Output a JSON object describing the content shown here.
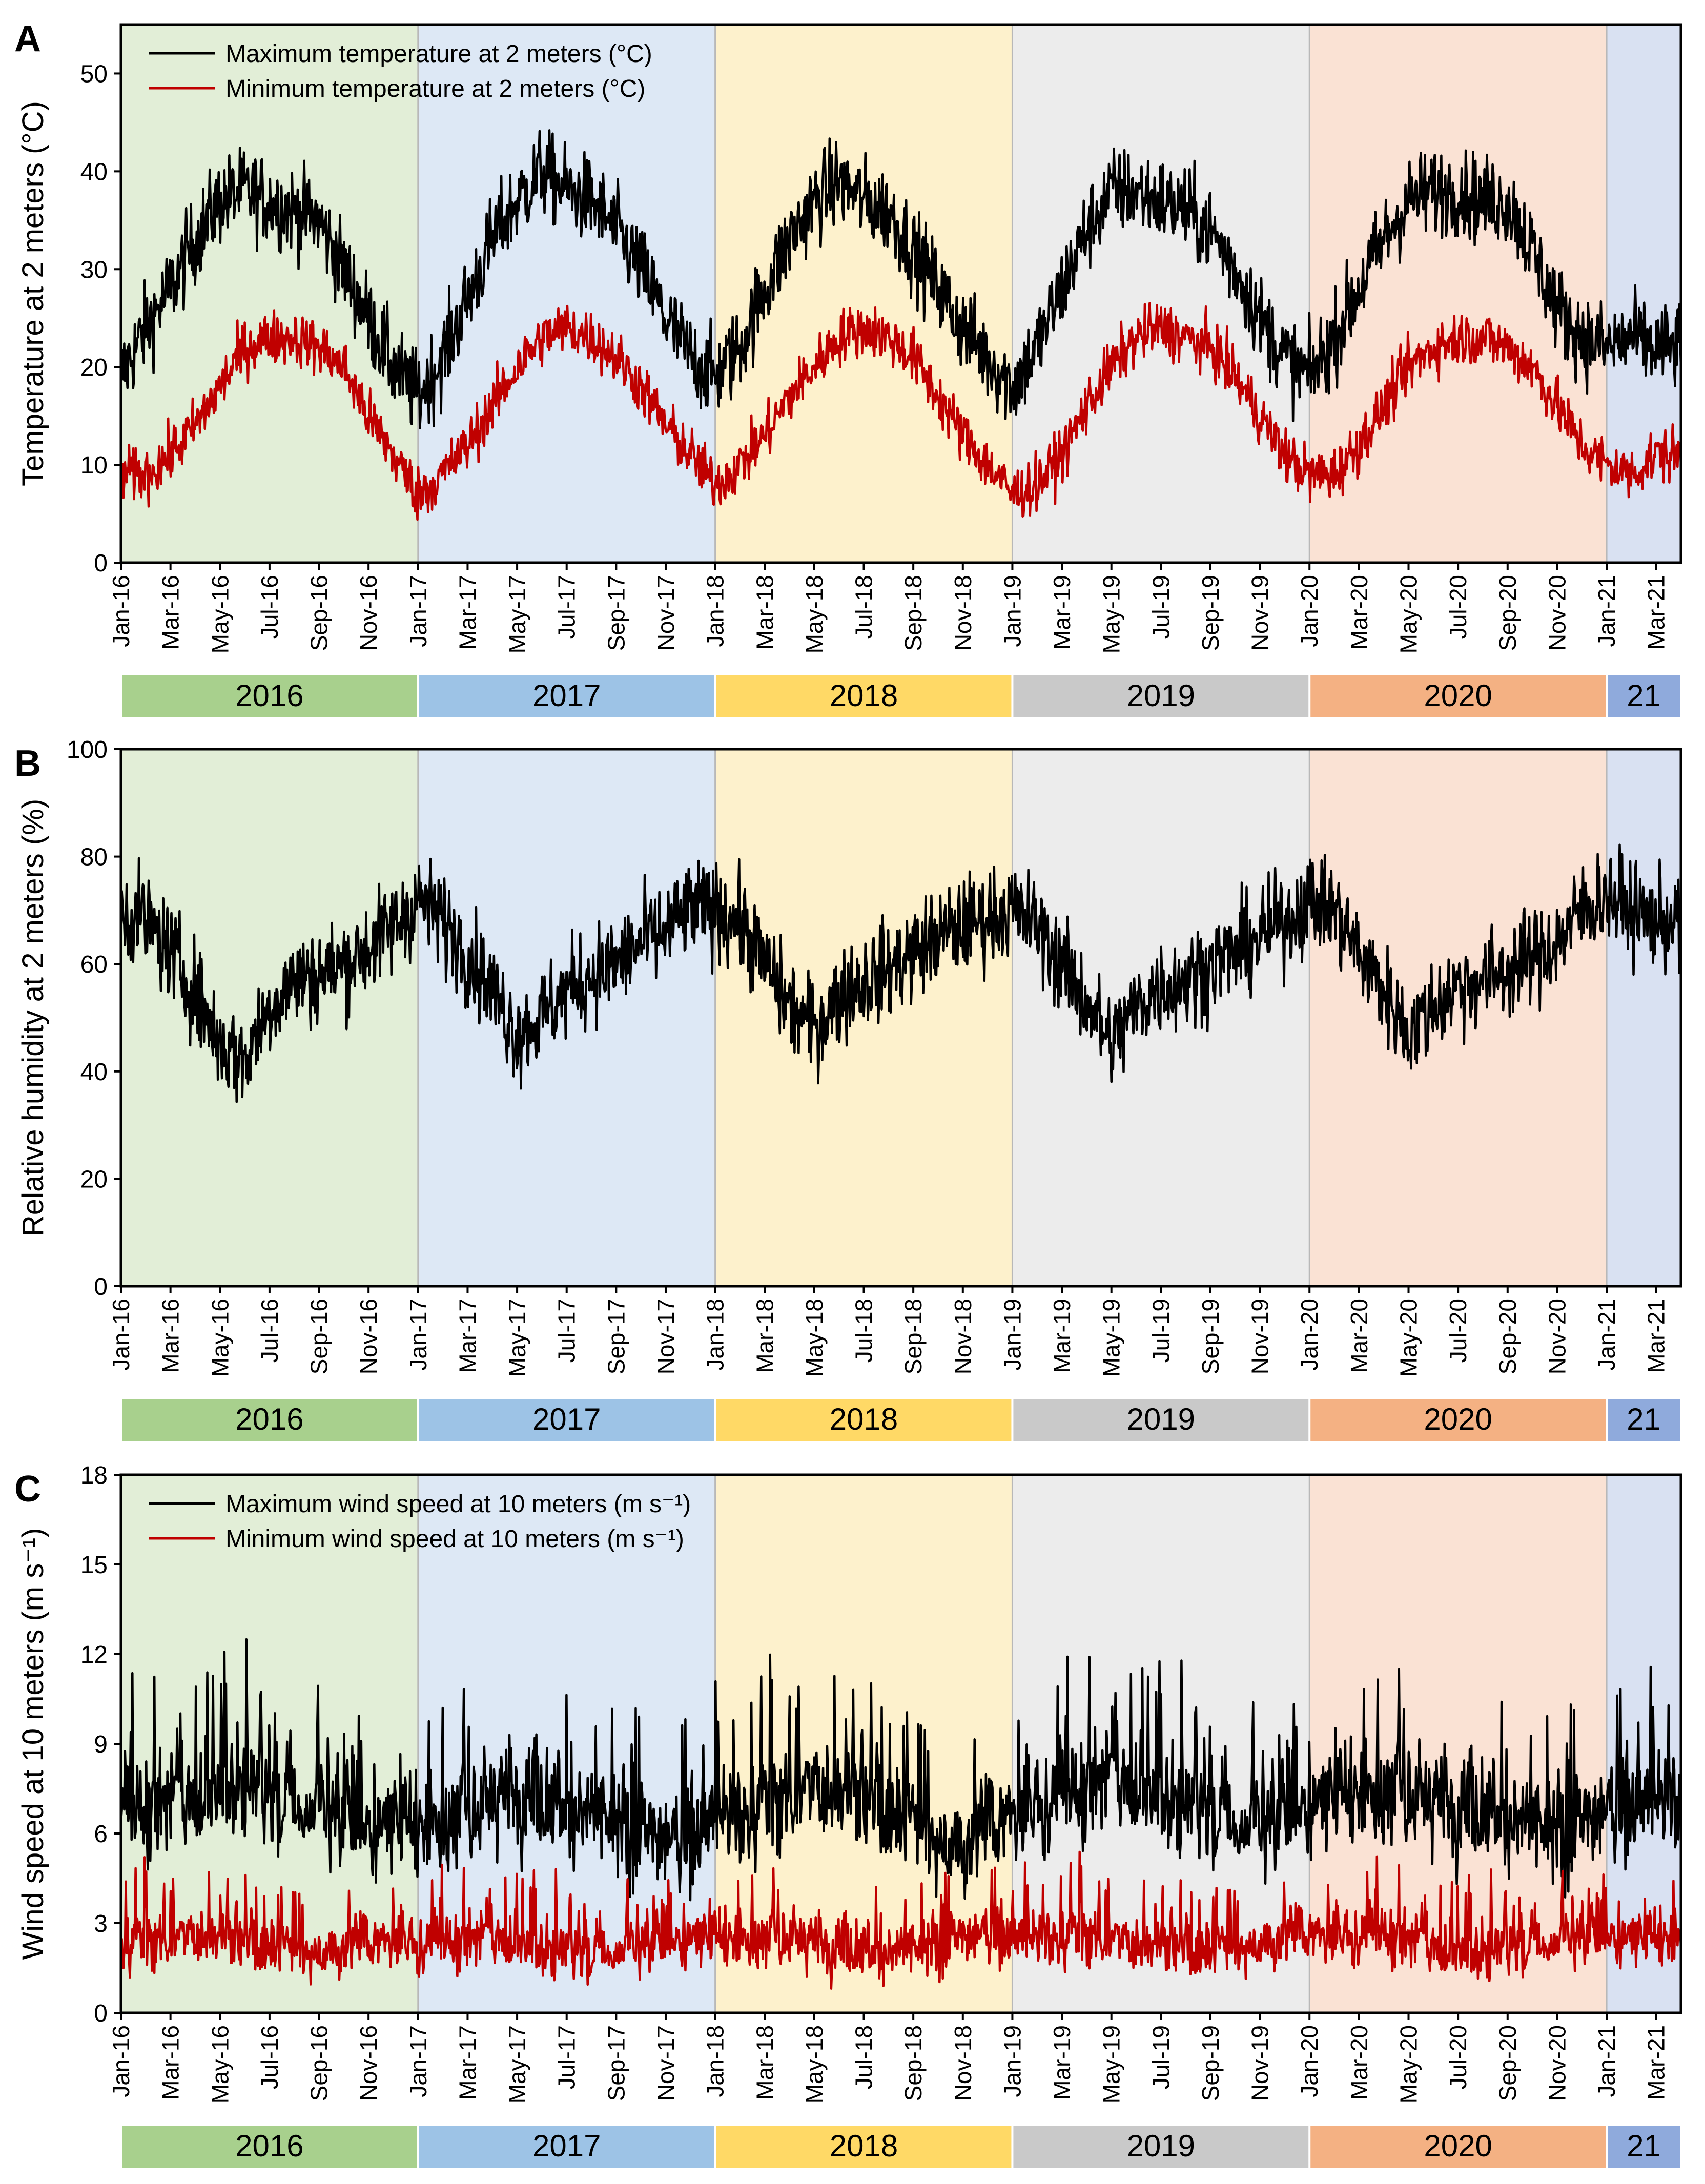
{
  "figure": {
    "month_labels": [
      "Jan-16",
      "Mar-16",
      "May-16",
      "Jul-16",
      "Sep-16",
      "Nov-16",
      "Jan-17",
      "Mar-17",
      "May-17",
      "Jul-17",
      "Sep-17",
      "Nov-17",
      "Jan-18",
      "Mar-18",
      "May-18",
      "Jul-18",
      "Sep-18",
      "Nov-18",
      "Jan-19",
      "Mar-19",
      "May-19",
      "Jul-19",
      "Sep-19",
      "Nov-19",
      "Jan-20",
      "Mar-20",
      "May-20",
      "Jul-20",
      "Sep-20",
      "Nov-20",
      "Jan-21",
      "Mar-21"
    ],
    "year_bands": [
      {
        "label": "2016",
        "fill": "#e2eed7",
        "bar": "#a8d08d",
        "start_month": 0,
        "end_month": 12
      },
      {
        "label": "2017",
        "fill": "#dde8f5",
        "bar": "#9dc3e6",
        "start_month": 12,
        "end_month": 24
      },
      {
        "label": "2018",
        "fill": "#fdf1cc",
        "bar": "#ffd966",
        "start_month": 24,
        "end_month": 36
      },
      {
        "label": "2019",
        "fill": "#ececec",
        "bar": "#c9c9c9",
        "start_month": 36,
        "end_month": 48
      },
      {
        "label": "2020",
        "fill": "#fae2d4",
        "bar": "#f4b183",
        "start_month": 48,
        "end_month": 60
      },
      {
        "label": "21",
        "fill": "#d9e1f2",
        "bar": "#8faadc",
        "start_month": 60,
        "end_month": 63
      }
    ],
    "colors": {
      "max_series": "#000000",
      "min_series": "#c00000"
    }
  },
  "chart_data": [
    {
      "panel": "A",
      "type": "line",
      "ylabel": "Temperature at 2 meters (°C)",
      "ylim": [
        0,
        55
      ],
      "yticks": [
        0,
        10,
        20,
        30,
        40,
        50
      ],
      "legend_position": "top-left",
      "series": [
        {
          "name": "Maximum temperature at 2 meters (°C)",
          "color": "#000000",
          "monthly_values": [
            19,
            24,
            28,
            33,
            37,
            38,
            37,
            36,
            35,
            30,
            25,
            20,
            17,
            21,
            27,
            33,
            37,
            40,
            38,
            37,
            34,
            30,
            25,
            21,
            19,
            22,
            28,
            33,
            37,
            39,
            37,
            36,
            32,
            28,
            24,
            21,
            18,
            22,
            28,
            34,
            38,
            38,
            37,
            36,
            34,
            30,
            25,
            21,
            19,
            23,
            28,
            33,
            37,
            38,
            38,
            37,
            37,
            32,
            26,
            23,
            22,
            23,
            22
          ]
        },
        {
          "name": "Minimum temperature at 2 meters (°C)",
          "color": "#c00000",
          "monthly_values": [
            9,
            9,
            11,
            14,
            18,
            22,
            23,
            23,
            22,
            20,
            15,
            11,
            7,
            9,
            12,
            16,
            20,
            23,
            24,
            23,
            21,
            18,
            14,
            11,
            8,
            10,
            13,
            17,
            20,
            23,
            24,
            23,
            21,
            17,
            13,
            10,
            7,
            8,
            11,
            16,
            20,
            23,
            24,
            23,
            22,
            19,
            15,
            11,
            9,
            9,
            12,
            16,
            20,
            22,
            23,
            23,
            22,
            20,
            16,
            12,
            10,
            9,
            11
          ]
        }
      ]
    },
    {
      "panel": "B",
      "type": "line",
      "ylabel": "Relative humidity at 2 meters (%)",
      "ylim": [
        0,
        100
      ],
      "yticks": [
        0,
        20,
        40,
        60,
        80,
        100
      ],
      "series": [
        {
          "name": "Relative humidity at 2 meters (%)",
          "color": "#000000",
          "monthly_values": [
            70,
            68,
            62,
            55,
            45,
            42,
            52,
            57,
            58,
            60,
            63,
            67,
            72,
            68,
            62,
            55,
            47,
            50,
            55,
            58,
            60,
            64,
            66,
            70,
            70,
            68,
            60,
            52,
            48,
            54,
            57,
            59,
            62,
            65,
            67,
            69,
            70,
            67,
            60,
            53,
            45,
            52,
            56,
            57,
            60,
            62,
            65,
            68,
            72,
            70,
            62,
            55,
            47,
            52,
            56,
            57,
            59,
            61,
            64,
            70,
            73,
            70,
            68
          ]
        }
      ]
    },
    {
      "panel": "C",
      "type": "line",
      "ylabel": "Wind speed at 10 meters (m s⁻¹)",
      "ylim": [
        0,
        18
      ],
      "yticks": [
        0,
        3,
        6,
        9,
        12,
        15,
        18
      ],
      "legend_position": "top-left",
      "series": [
        {
          "name": "Maximum wind speed at 10 meters (m s⁻¹)",
          "color": "#000000",
          "monthly_values": [
            6.5,
            6.8,
            7.0,
            7.2,
            7.6,
            7.8,
            7.2,
            7.0,
            6.8,
            6.4,
            6.0,
            6.2,
            6.0,
            6.4,
            6.8,
            7.2,
            7.5,
            7.2,
            6.8,
            6.6,
            6.2,
            5.8,
            5.6,
            5.8,
            6.5,
            6.5,
            6.9,
            7.3,
            7.6,
            7.4,
            7.0,
            6.7,
            6.3,
            5.9,
            5.7,
            6.0,
            6.6,
            6.8,
            7.1,
            7.5,
            7.8,
            7.6,
            7.3,
            7.0,
            6.7,
            6.4,
            6.2,
            6.4,
            6.8,
            7.0,
            7.2,
            7.4,
            7.4,
            7.2,
            7.0,
            6.8,
            6.5,
            6.2,
            5.9,
            6.1,
            6.6,
            6.9,
            7.0
          ]
        },
        {
          "name": "Minimum wind speed at 10 meters (m s⁻¹)",
          "color": "#c00000",
          "monthly_values": [
            2.3,
            2.4,
            2.5,
            2.6,
            2.5,
            2.3,
            2.2,
            2.1,
            2.1,
            2.2,
            2.3,
            2.4,
            2.2,
            2.3,
            2.4,
            2.5,
            2.4,
            2.2,
            2.1,
            2.0,
            2.1,
            2.2,
            2.3,
            2.4,
            2.4,
            2.4,
            2.5,
            2.6,
            2.4,
            2.3,
            2.1,
            2.0,
            2.1,
            2.2,
            2.4,
            2.6,
            2.5,
            2.4,
            2.5,
            2.6,
            2.5,
            2.3,
            2.2,
            2.1,
            2.1,
            2.2,
            2.4,
            2.5,
            2.6,
            2.5,
            2.5,
            2.6,
            2.4,
            2.2,
            2.1,
            2.1,
            2.2,
            2.3,
            2.4,
            2.5,
            2.5,
            2.4,
            2.4
          ]
        }
      ]
    }
  ]
}
